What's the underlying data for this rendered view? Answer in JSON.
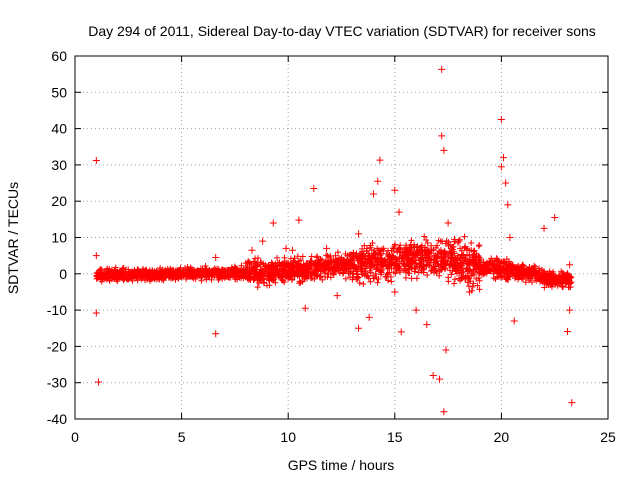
{
  "chart_data": {
    "type": "scatter",
    "title": "Day 294 of 2011, Sidereal Day-to-day VTEC variation (SDTVAR) for receiver sons",
    "xlabel": "GPS time / hours",
    "ylabel": "SDTVAR / TECUs",
    "xlim": [
      0,
      25
    ],
    "ylim": [
      -40,
      60
    ],
    "xticks": [
      "0",
      "5",
      "10",
      "15",
      "20",
      "25"
    ],
    "yticks": [
      "60",
      "50",
      "40",
      "30",
      "20",
      "10",
      "0",
      "-10",
      "-20",
      "-30",
      "-40"
    ],
    "grid": true,
    "marker": "+",
    "color": "#ff0000",
    "series": [
      {
        "name": "SDTVAR",
        "x": [
          1.0,
          1.0,
          1.1,
          1.0,
          1.2,
          1.5,
          2.0,
          2.5,
          3.0,
          3.5,
          4.0,
          4.5,
          5.0,
          5.5,
          6.0,
          6.5,
          6.6,
          6.6,
          7.0,
          7.5,
          8.0,
          8.3,
          8.5,
          8.8,
          9.0,
          9.3,
          9.5,
          9.9,
          10.0,
          10.2,
          10.5,
          10.8,
          11.0,
          11.2,
          11.5,
          11.8,
          12.0,
          12.3,
          12.5,
          12.8,
          13.0,
          13.3,
          13.3,
          13.5,
          13.8,
          14.0,
          14.0,
          14.2,
          14.3,
          14.5,
          14.8,
          15.0,
          15.0,
          15.2,
          15.3,
          15.5,
          15.8,
          16.0,
          16.0,
          16.2,
          16.5,
          16.8,
          17.0,
          17.1,
          17.2,
          17.2,
          17.3,
          17.3,
          17.4,
          17.5,
          17.6,
          17.8,
          18.0,
          18.3,
          18.5,
          18.7,
          18.9,
          19.2,
          19.5,
          19.8,
          20.0,
          20.0,
          20.1,
          20.2,
          20.3,
          20.4,
          20.5,
          20.6,
          21.0,
          21.5,
          22.0,
          22.3,
          22.5,
          22.8,
          23.0,
          23.1,
          23.2,
          23.3,
          23.2
        ],
        "y": [
          31.2,
          -10.8,
          -29.8,
          5.0,
          0.5,
          0.8,
          0.0,
          -0.5,
          0.3,
          0.2,
          0.0,
          -0.5,
          0.0,
          0.3,
          0.5,
          0.4,
          -16.5,
          4.5,
          0.8,
          1.0,
          0.5,
          6.5,
          2.0,
          9.0,
          1.0,
          14.0,
          2.0,
          7.0,
          2.0,
          6.5,
          14.8,
          -9.5,
          2.5,
          23.5,
          3.0,
          7.0,
          3.5,
          -6.0,
          2.5,
          5.0,
          3.5,
          -15.0,
          11.0,
          4.0,
          -12.0,
          5.5,
          22.0,
          25.5,
          31.3,
          3.0,
          4.5,
          23.0,
          -5.0,
          17.0,
          -16.0,
          5.0,
          3.5,
          5.0,
          -10.0,
          4.5,
          -14.0,
          -28.0,
          5.5,
          -29.0,
          56.3,
          38.0,
          -38.0,
          34.0,
          -21.0,
          14.0,
          8.0,
          9.5,
          9.0,
          7.5,
          -5.0,
          3.5,
          3.0,
          2.5,
          3.0,
          4.0,
          42.5,
          29.5,
          32.0,
          25.0,
          19.0,
          10.0,
          2.5,
          -13.0,
          0.5,
          0.0,
          12.5,
          -1.0,
          15.5,
          -1.0,
          -1.5,
          -15.9,
          2.5,
          -35.5,
          -10.0
        ]
      }
    ]
  }
}
